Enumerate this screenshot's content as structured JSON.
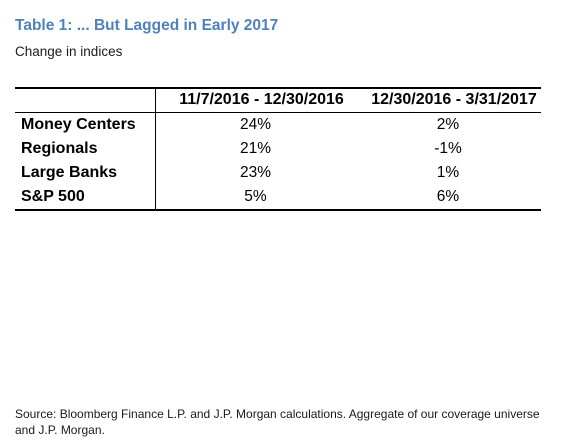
{
  "colors": {
    "title": "#4f81bd",
    "text": "#000000",
    "rules": "#000000"
  },
  "chart_data": {
    "type": "table",
    "title": "Table 1: ... But Lagged in Early 2017",
    "subtitle": "Change in indices",
    "columns": [
      "11/7/2016 - 12/30/2016",
      "12/30/2016 - 3/31/2017"
    ],
    "rows": [
      {
        "label": "Money Centers",
        "values": [
          "24%",
          "2%"
        ]
      },
      {
        "label": "Regionals",
        "values": [
          "21%",
          "-1%"
        ]
      },
      {
        "label": "Large Banks",
        "values": [
          "23%",
          "1%"
        ]
      },
      {
        "label": "S&P 500",
        "values": [
          "5%",
          "6%"
        ]
      }
    ],
    "source": "Source: Bloomberg Finance L.P. and J.P. Morgan calculations. Aggregate of our coverage universe and J.P. Morgan."
  }
}
